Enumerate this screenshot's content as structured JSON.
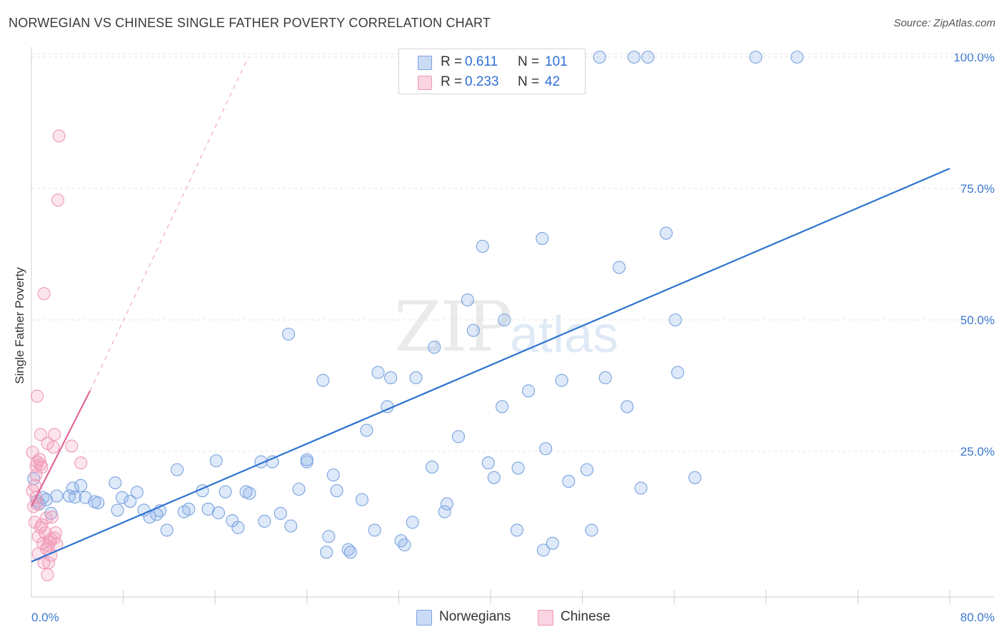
{
  "header": {
    "title": "NORWEGIAN VS CHINESE SINGLE FATHER POVERTY CORRELATION CHART",
    "source": "Source: ZipAtlas.com"
  },
  "watermark": {
    "zip": "ZIP",
    "atlas": "atlas"
  },
  "legend_top": {
    "rows": [
      {
        "r_label": "R =",
        "r_value": "0.611",
        "n_label": "N =",
        "n_value": "101"
      },
      {
        "r_label": "R =",
        "r_value": "0.233",
        "n_label": "N =",
        "n_value": "42"
      }
    ]
  },
  "legend_bottom": {
    "items": [
      {
        "label": "Norwegians"
      },
      {
        "label": "Chinese"
      }
    ]
  },
  "colors": {
    "blue_fill": "rgba(137,176,232,0.28)",
    "blue_stroke": "#7aa3e0",
    "blue_line": "#2e73d1",
    "pink_fill": "rgba(245,160,190,0.28)",
    "pink_stroke": "#ef98b6",
    "pink_line": "#e0689a",
    "tick_text": "#3b78d0",
    "grid": "#e3e3e3"
  },
  "chart_data": {
    "type": "scatter",
    "title": "NORWEGIAN VS CHINESE SINGLE FATHER POVERTY CORRELATION CHART",
    "xlabel": "",
    "ylabel": "Single Father Poverty",
    "xlim": [
      0,
      80
    ],
    "ylim": [
      0,
      105
    ],
    "x_ticks": [
      "0.0%",
      "80.0%"
    ],
    "y_ticks": [
      {
        "value": 25,
        "label": "25.0%"
      },
      {
        "value": 50,
        "label": "50.0%"
      },
      {
        "value": 75,
        "label": "75.0%"
      },
      {
        "value": 100,
        "label": "100.0%"
      }
    ],
    "grid": true,
    "legend": "bottom-center",
    "series": [
      {
        "name": "Norwegians",
        "points": [
          [
            0.2,
            19.8
          ],
          [
            0.5,
            15.5
          ],
          [
            0.7,
            15.0
          ],
          [
            1.0,
            16.2
          ],
          [
            1.3,
            15.8
          ],
          [
            1.7,
            13.2
          ],
          [
            2.2,
            16.5
          ],
          [
            3.3,
            16.5
          ],
          [
            3.6,
            18.0
          ],
          [
            3.8,
            16.3
          ],
          [
            4.3,
            18.5
          ],
          [
            4.7,
            16.2
          ],
          [
            5.5,
            15.4
          ],
          [
            5.8,
            15.2
          ],
          [
            7.3,
            19.0
          ],
          [
            7.5,
            13.8
          ],
          [
            7.9,
            16.2
          ],
          [
            8.6,
            15.5
          ],
          [
            9.2,
            17.2
          ],
          [
            9.8,
            13.8
          ],
          [
            10.3,
            12.5
          ],
          [
            10.9,
            13.0
          ],
          [
            11.2,
            13.7
          ],
          [
            11.8,
            10.0
          ],
          [
            12.7,
            21.5
          ],
          [
            13.3,
            13.5
          ],
          [
            13.7,
            14.0
          ],
          [
            14.9,
            17.5
          ],
          [
            15.4,
            14.0
          ],
          [
            16.1,
            23.2
          ],
          [
            16.3,
            13.3
          ],
          [
            16.9,
            17.3
          ],
          [
            17.5,
            11.8
          ],
          [
            18.0,
            10.5
          ],
          [
            18.7,
            17.3
          ],
          [
            19.0,
            17.0
          ],
          [
            20.0,
            23.0
          ],
          [
            20.3,
            11.7
          ],
          [
            21.0,
            23.0
          ],
          [
            21.7,
            13.2
          ],
          [
            22.4,
            47.3
          ],
          [
            22.6,
            10.8
          ],
          [
            23.3,
            17.8
          ],
          [
            24.0,
            23.0
          ],
          [
            24.0,
            23.4
          ],
          [
            25.4,
            38.5
          ],
          [
            25.9,
            8.8
          ],
          [
            25.7,
            5.8
          ],
          [
            26.3,
            20.5
          ],
          [
            26.6,
            17.5
          ],
          [
            27.6,
            6.3
          ],
          [
            27.8,
            5.8
          ],
          [
            28.8,
            15.8
          ],
          [
            29.2,
            29.0
          ],
          [
            29.9,
            10.0
          ],
          [
            30.2,
            40.0
          ],
          [
            31.0,
            33.5
          ],
          [
            31.3,
            39.0
          ],
          [
            32.2,
            8.0
          ],
          [
            32.5,
            7.2
          ],
          [
            33.2,
            11.5
          ],
          [
            33.5,
            39.0
          ],
          [
            34.9,
            22.0
          ],
          [
            35.1,
            44.8
          ],
          [
            36.0,
            13.5
          ],
          [
            36.2,
            15.0
          ],
          [
            37.2,
            27.8
          ],
          [
            38.0,
            53.8
          ],
          [
            38.5,
            48.0
          ],
          [
            39.3,
            64.0
          ],
          [
            39.8,
            22.8
          ],
          [
            40.3,
            20.0
          ],
          [
            41.0,
            33.5
          ],
          [
            41.2,
            50.0
          ],
          [
            41.4,
            100.0
          ],
          [
            42.3,
            10.0
          ],
          [
            42.4,
            21.8
          ],
          [
            43.3,
            36.5
          ],
          [
            44.5,
            65.5
          ],
          [
            44.6,
            6.2
          ],
          [
            44.8,
            25.5
          ],
          [
            45.4,
            7.5
          ],
          [
            46.2,
            38.5
          ],
          [
            46.8,
            19.3
          ],
          [
            47.5,
            100.0
          ],
          [
            48.4,
            21.5
          ],
          [
            48.8,
            10.0
          ],
          [
            49.5,
            100.0
          ],
          [
            50.0,
            39.0
          ],
          [
            51.2,
            60.0
          ],
          [
            51.9,
            33.5
          ],
          [
            52.5,
            100.0
          ],
          [
            53.1,
            18.0
          ],
          [
            53.7,
            100.0
          ],
          [
            55.3,
            66.5
          ],
          [
            56.1,
            50.0
          ],
          [
            56.3,
            40.0
          ],
          [
            57.8,
            20.0
          ],
          [
            63.1,
            100.0
          ],
          [
            66.7,
            100.0
          ],
          [
            46.8,
            100.0
          ]
        ],
        "trend": {
          "x": [
            0,
            80
          ],
          "y": [
            4.0,
            78.8
          ]
        }
      },
      {
        "name": "Chinese",
        "points": [
          [
            0.1,
            24.8
          ],
          [
            0.1,
            17.5
          ],
          [
            0.2,
            14.5
          ],
          [
            0.3,
            18.5
          ],
          [
            0.3,
            11.5
          ],
          [
            0.4,
            22.2
          ],
          [
            0.4,
            16.2
          ],
          [
            0.5,
            35.5
          ],
          [
            0.5,
            15.0
          ],
          [
            0.5,
            23.0
          ],
          [
            0.6,
            8.8
          ],
          [
            0.6,
            5.5
          ],
          [
            0.7,
            23.5
          ],
          [
            0.8,
            28.2
          ],
          [
            0.8,
            22.5
          ],
          [
            0.8,
            10.5
          ],
          [
            0.9,
            11.0
          ],
          [
            1.0,
            7.5
          ],
          [
            1.1,
            55.0
          ],
          [
            1.1,
            3.8
          ],
          [
            1.2,
            9.5
          ],
          [
            1.3,
            12.3
          ],
          [
            1.3,
            6.5
          ],
          [
            1.4,
            1.5
          ],
          [
            1.4,
            26.5
          ],
          [
            1.5,
            3.8
          ],
          [
            1.5,
            7.0
          ],
          [
            1.6,
            7.8
          ],
          [
            1.7,
            8.3
          ],
          [
            1.7,
            5.2
          ],
          [
            1.8,
            12.5
          ],
          [
            1.9,
            25.8
          ],
          [
            2.0,
            28.2
          ],
          [
            2.0,
            8.5
          ],
          [
            2.1,
            9.5
          ],
          [
            2.2,
            7.3
          ],
          [
            2.3,
            72.8
          ],
          [
            2.4,
            85.0
          ],
          [
            3.5,
            26.0
          ],
          [
            4.3,
            22.8
          ],
          [
            0.9,
            22.0
          ],
          [
            0.4,
            20.5
          ]
        ],
        "trend": {
          "x": [
            0,
            5.1
          ],
          "y": [
            14.5,
            36.5
          ]
        },
        "trend_extension": {
          "x": [
            5.1,
            18.9
          ],
          "y": [
            36.5,
            100.0
          ]
        }
      }
    ]
  }
}
